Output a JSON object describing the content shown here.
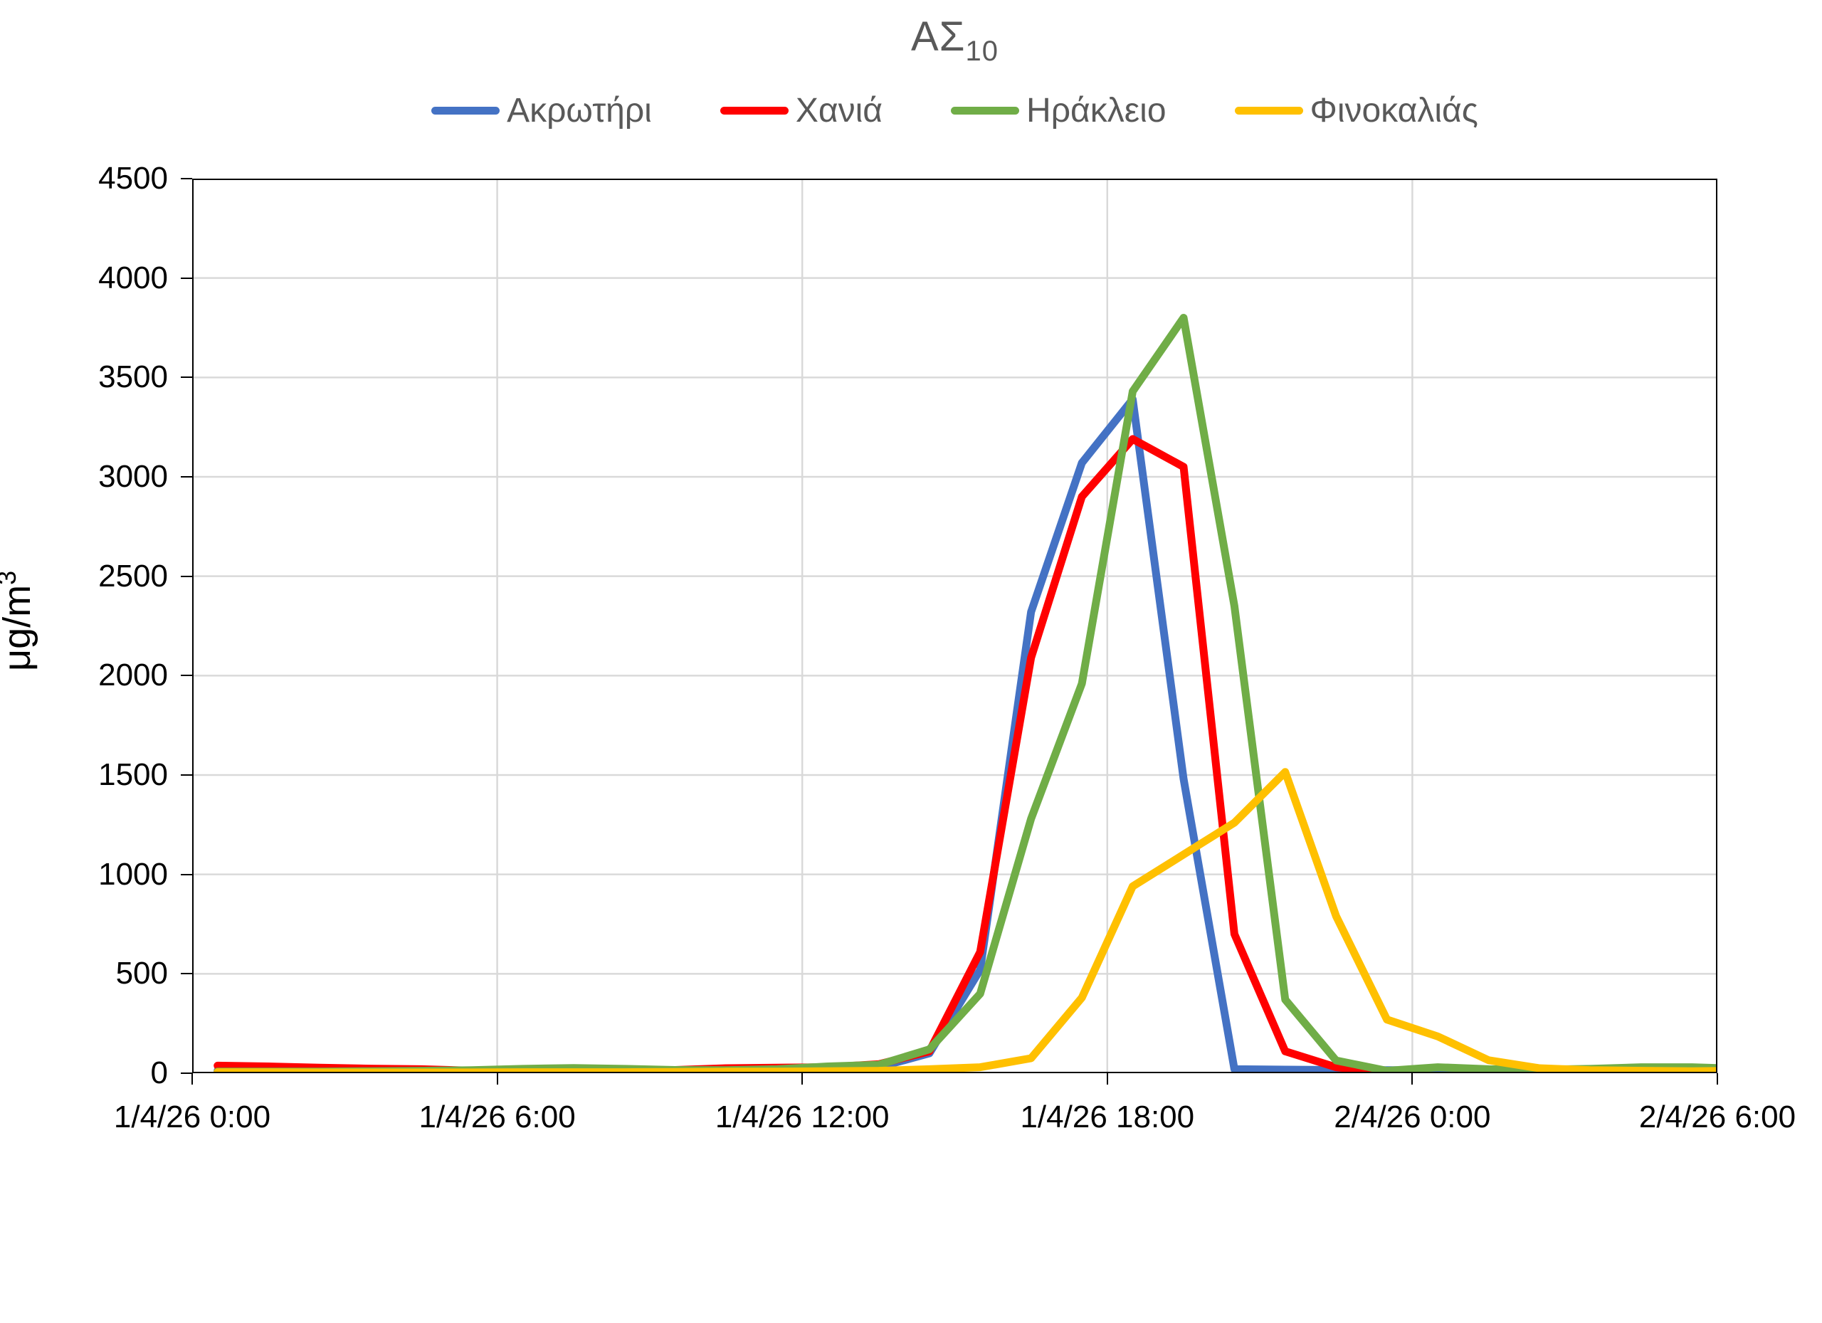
{
  "ui": {
    "title_main": "ΑΣ",
    "title_sub": "10",
    "y_axis_title_main": "μg/m",
    "y_axis_title_sup": "3"
  },
  "chart_data": {
    "type": "line",
    "title": "ΑΣ10",
    "subtitle": "",
    "xlabel": "",
    "ylabel": "μg/m³",
    "ylim": [
      0,
      4500
    ],
    "y_tick_step": 500,
    "y_tick_labels": [
      "0",
      "500",
      "1000",
      "1500",
      "2000",
      "2500",
      "3000",
      "3500",
      "4000",
      "4500"
    ],
    "x_tick_labels": [
      "1/4/26 0:00",
      "1/4/26 6:00",
      "1/4/26 12:00",
      "1/4/26 18:00",
      "2/4/26 0:00",
      "2/4/26 6:00"
    ],
    "x_hours_total": 30,
    "x_tick_every_hours": 6,
    "x_sampling": "hourly values from 1/4/26 0:00 to 2/4/26 6:00, points offset half an interval right of gridlines",
    "grid": true,
    "legend_position": "top",
    "colors": {
      "grid": "#D9D9D9",
      "axis": "#000000",
      "text": "#595959"
    },
    "series": [
      {
        "name": "Ακρωτήρι",
        "color": "#4472C4",
        "values": [
          12,
          10,
          9,
          8,
          7,
          6,
          6,
          8,
          8,
          9,
          10,
          12,
          18,
          30,
          100,
          520,
          2320,
          3070,
          3390,
          1480,
          20,
          18,
          16,
          15,
          15,
          14,
          14,
          14,
          15,
          15,
          15
        ]
      },
      {
        "name": "Χανιά",
        "color": "#FF0000",
        "values": [
          38,
          34,
          28,
          23,
          20,
          13,
          10,
          10,
          12,
          16,
          25,
          28,
          30,
          45,
          110,
          610,
          2090,
          2900,
          3190,
          3050,
          700,
          110,
          30,
          5,
          null,
          null,
          null,
          null,
          null,
          null,
          null
        ]
      },
      {
        "name": "Ηράκλειο",
        "color": "#70AD47",
        "values": [
          8,
          8,
          8,
          10,
          12,
          15,
          22,
          26,
          22,
          16,
          15,
          20,
          34,
          42,
          120,
          400,
          1280,
          1960,
          3430,
          3800,
          2350,
          370,
          64,
          12,
          30,
          20,
          18,
          22,
          30,
          30,
          22
        ]
      },
      {
        "name": "Φινοκαλιάς",
        "color": "#FFC000",
        "values": [
          5,
          5,
          4,
          4,
          4,
          4,
          5,
          5,
          5,
          6,
          8,
          8,
          10,
          12,
          20,
          30,
          75,
          380,
          940,
          1100,
          1260,
          1515,
          790,
          270,
          185,
          65,
          25,
          15,
          12,
          10,
          12
        ]
      }
    ]
  }
}
